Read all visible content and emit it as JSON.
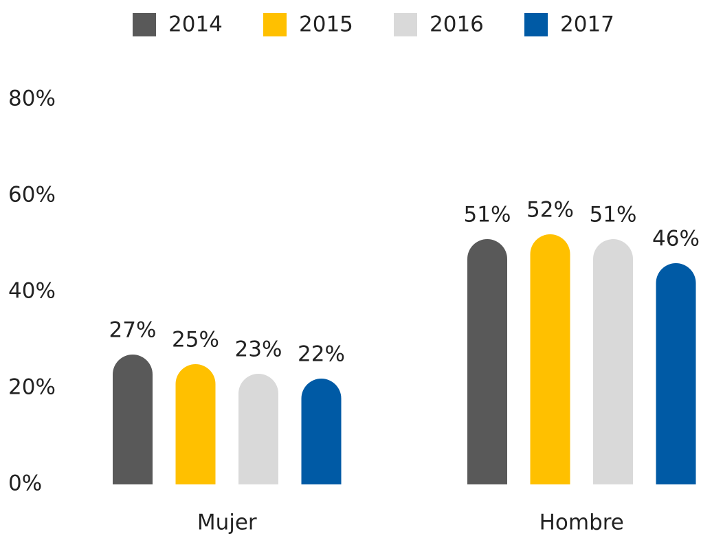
{
  "chart_data": {
    "type": "bar",
    "categories": [
      "Mujer",
      "Hombre"
    ],
    "series": [
      {
        "name": "2014",
        "color": "#595959",
        "values": [
          27,
          51
        ],
        "value_labels": [
          "27%",
          "51%"
        ]
      },
      {
        "name": "2015",
        "color": "#ffc000",
        "values": [
          25,
          52
        ],
        "value_labels": [
          "25%",
          "52%"
        ]
      },
      {
        "name": "2016",
        "color": "#d9d9d9",
        "values": [
          23,
          51
        ],
        "value_labels": [
          "23%",
          "51%"
        ]
      },
      {
        "name": "2017",
        "color": "#005aa5",
        "values": [
          22,
          46
        ],
        "value_labels": [
          "22%",
          "46%"
        ]
      }
    ],
    "ylim": [
      0,
      80
    ],
    "yticks": [
      {
        "value": 0,
        "label": "0%"
      },
      {
        "value": 20,
        "label": "20%"
      },
      {
        "value": 40,
        "label": "40%"
      },
      {
        "value": 60,
        "label": "60%"
      },
      {
        "value": 80,
        "label": "80%"
      }
    ],
    "grid": false,
    "legend": "top"
  }
}
